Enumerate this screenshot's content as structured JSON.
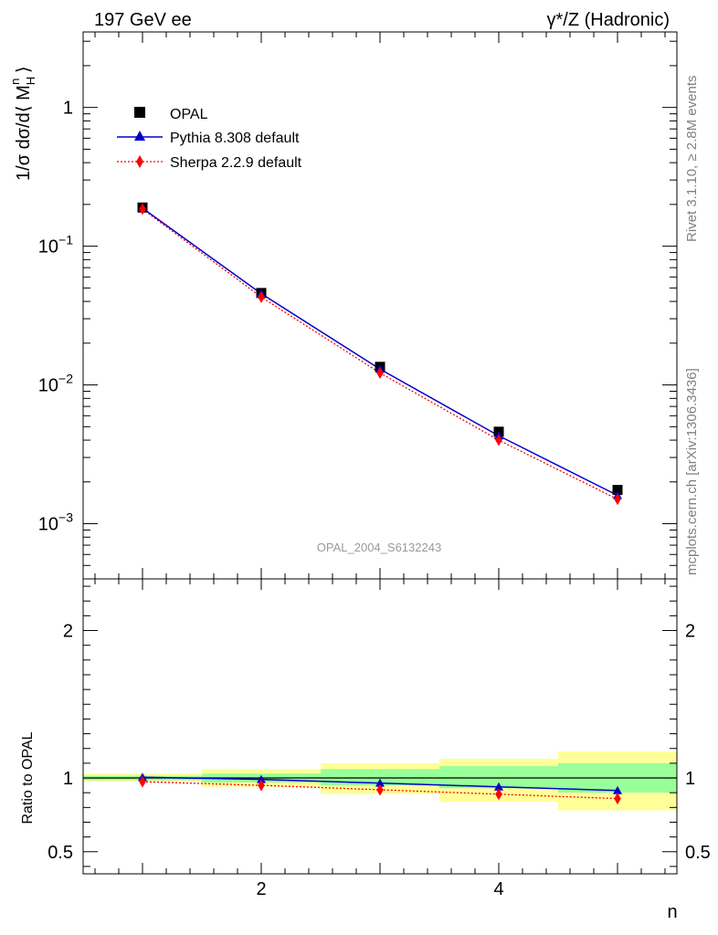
{
  "header": {
    "left": "197 GeV ee",
    "right": "γ*/Z (Hadronic)"
  },
  "side_labels": {
    "rivet": "Rivet 3.1.10, ≥ 2.8M events",
    "mcplots": "mcplots.cern.ch [arXiv:1306.3436]"
  },
  "watermark": "OPAL_2004_S6132243",
  "colors": {
    "data": "#000000",
    "pythia": "#0000cc",
    "sherpa": "#ff0000",
    "band_inner": "#99ff99",
    "band_outer": "#ffff99"
  },
  "chart_data": [
    {
      "type": "scatter",
      "panel": "main",
      "xlabel": "n",
      "ylabel": "1/σ dσ/d⟨ M_H^n ⟩",
      "yscale": "log",
      "xlim": [
        0.5,
        5.5
      ],
      "ylim": [
        0.0004,
        3.5
      ],
      "yticks": [
        "10^-3",
        "10^-2",
        "10^-1",
        "1"
      ],
      "legend_position": "top-left",
      "x": [
        1,
        2,
        3,
        4,
        5
      ],
      "series": [
        {
          "name": "OPAL",
          "marker": "square",
          "values": [
            0.19,
            0.046,
            0.0135,
            0.0046,
            0.00175
          ]
        },
        {
          "name": "Pythia 8.308 default",
          "marker": "triangle",
          "line": "solid",
          "values": [
            0.188,
            0.0455,
            0.013,
            0.0043,
            0.0016
          ]
        },
        {
          "name": "Sherpa 2.2.9 default",
          "marker": "diamond",
          "line": "dotted",
          "values": [
            0.185,
            0.043,
            0.0122,
            0.004,
            0.0015
          ]
        }
      ]
    },
    {
      "type": "line",
      "panel": "ratio",
      "xlabel": "n",
      "ylabel": "Ratio to OPAL",
      "xlim": [
        0.5,
        5.5
      ],
      "ylim": [
        0.35,
        2.35
      ],
      "xticks": [
        "2",
        "4"
      ],
      "yticks": [
        "0.5",
        "1",
        "2"
      ],
      "x": [
        1,
        2,
        3,
        4,
        5
      ],
      "bands": [
        {
          "x": [
            0.5,
            1.5,
            2.5,
            3.5,
            4.5,
            5.5
          ],
          "inner": [
            [
              0.985,
              1.015
            ],
            [
              0.97,
              1.03
            ],
            [
              0.95,
              1.06
            ],
            [
              0.93,
              1.08
            ],
            [
              0.9,
              1.1
            ]
          ],
          "outer": [
            [
              0.975,
              1.03
            ],
            [
              0.94,
              1.06
            ],
            [
              0.89,
              1.1
            ],
            [
              0.84,
              1.13
            ],
            [
              0.78,
              1.18
            ]
          ]
        }
      ],
      "series": [
        {
          "name": "Pythia 8.308 default",
          "marker": "triangle",
          "values": [
            1.005,
            0.99,
            0.965,
            0.94,
            0.915
          ]
        },
        {
          "name": "Sherpa 2.2.9 default",
          "marker": "diamond",
          "values": [
            0.975,
            0.95,
            0.92,
            0.89,
            0.86
          ]
        }
      ]
    }
  ]
}
